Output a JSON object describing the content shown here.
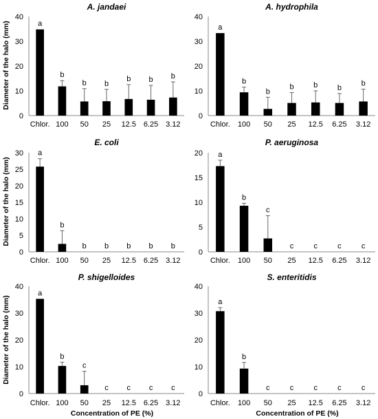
{
  "chart_data": [
    {
      "type": "bar",
      "title": "A. jandaei",
      "ylabel": "Diameter of the halo (mm)",
      "xlabel": "",
      "ylim": [
        0,
        40
      ],
      "yticks": [
        0,
        10,
        20,
        30,
        40
      ],
      "categories": [
        "Chlor.",
        "100",
        "50",
        "25",
        "12.5",
        "6.25",
        "3.12"
      ],
      "values": [
        34.8,
        11.8,
        5.7,
        5.8,
        6.7,
        6.4,
        7.3
      ],
      "errors": [
        0,
        2.3,
        5.2,
        4.8,
        5.8,
        5.8,
        6.3
      ],
      "letters": [
        "a",
        "b",
        "b",
        "b",
        "b",
        "b",
        "b"
      ]
    },
    {
      "type": "bar",
      "title": "A. hydrophila",
      "ylabel": "",
      "xlabel": "",
      "ylim": [
        0,
        40
      ],
      "yticks": [
        0,
        10,
        20,
        30,
        40
      ],
      "categories": [
        "Chlor.",
        "100",
        "50",
        "25",
        "12.5",
        "6.25",
        "3.12"
      ],
      "values": [
        33.3,
        9.4,
        2.7,
        5.1,
        5.3,
        5.1,
        5.7
      ],
      "errors": [
        0,
        2.1,
        4.7,
        4.2,
        4.7,
        3.8,
        5.0
      ],
      "letters": [
        "a",
        "b",
        "b",
        "b",
        "b",
        "b",
        "b"
      ]
    },
    {
      "type": "bar",
      "title": "E. coli",
      "ylabel": "Diameter of the halo (mm)",
      "xlabel": "",
      "ylim": [
        0,
        30
      ],
      "yticks": [
        0,
        5,
        10,
        15,
        20,
        25,
        30
      ],
      "categories": [
        "Chlor.",
        "100",
        "50",
        "25",
        "12.5",
        "6.25",
        "3.12"
      ],
      "values": [
        25.8,
        2.4,
        0,
        0,
        0,
        0,
        0
      ],
      "errors": [
        2.4,
        4.0,
        0,
        0,
        0,
        0,
        0
      ],
      "letters": [
        "a",
        "b",
        "b",
        "b",
        "b",
        "b",
        "b"
      ]
    },
    {
      "type": "bar",
      "title": "P. aeruginosa",
      "ylabel": "",
      "xlabel": "",
      "ylim": [
        0,
        20
      ],
      "yticks": [
        0,
        5,
        10,
        15,
        20
      ],
      "categories": [
        "Chlor.",
        "100",
        "50",
        "25",
        "12.5",
        "6.25",
        "3.12"
      ],
      "values": [
        17.3,
        9.3,
        2.7,
        0,
        0,
        0,
        0
      ],
      "errors": [
        1.2,
        0.5,
        4.6,
        0,
        0,
        0,
        0
      ],
      "letters": [
        "a",
        "b",
        "c",
        "c",
        "c",
        "c",
        "c"
      ]
    },
    {
      "type": "bar",
      "title": "P. shigelloides",
      "ylabel": "Diameter of the halo (mm)",
      "xlabel": "Concentration of PE (%)",
      "ylim": [
        0,
        40
      ],
      "yticks": [
        0,
        10,
        20,
        30,
        40
      ],
      "categories": [
        "Chlor.",
        "100",
        "50",
        "25",
        "12.5",
        "6.25",
        "3.12"
      ],
      "values": [
        35.3,
        10.3,
        3.1,
        0,
        0,
        0,
        0
      ],
      "errors": [
        0,
        1.4,
        5.2,
        0,
        0,
        0,
        0
      ],
      "letters": [
        "a",
        "b",
        "c",
        "c",
        "c",
        "c",
        "c"
      ]
    },
    {
      "type": "bar",
      "title": "S. enteritidis",
      "ylabel": "",
      "xlabel": "Concentration of PE (%)",
      "ylim": [
        0,
        40
      ],
      "yticks": [
        0,
        10,
        20,
        30,
        40
      ],
      "categories": [
        "Chlor.",
        "100",
        "50",
        "25",
        "12.5",
        "6.25",
        "3.12"
      ],
      "values": [
        30.7,
        9.3,
        0,
        0,
        0,
        0,
        0
      ],
      "errors": [
        1.3,
        2.3,
        0,
        0,
        0,
        0,
        0
      ],
      "letters": [
        "a",
        "b",
        "c",
        "c",
        "c",
        "c",
        "c"
      ]
    }
  ]
}
